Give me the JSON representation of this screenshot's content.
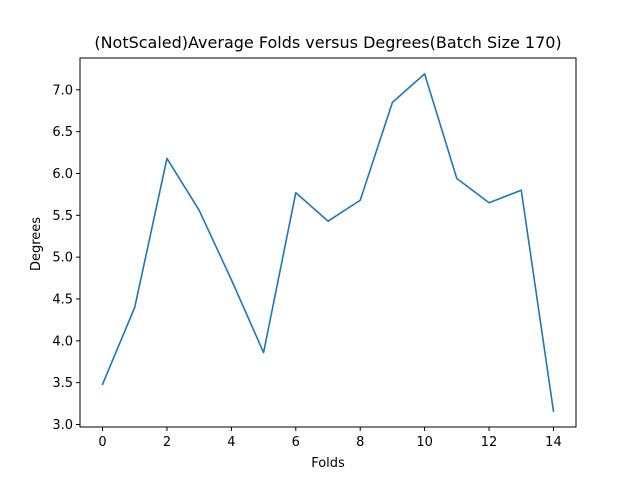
{
  "chart_data": {
    "type": "line",
    "title": "(NotScaled)Average Folds versus Degrees(Batch Size 170)",
    "xlabel": "Folds",
    "ylabel": "Degrees",
    "xlim": [
      -0.7,
      14.7
    ],
    "ylim": [
      2.97,
      7.38
    ],
    "x_ticks": [
      0,
      2,
      4,
      6,
      8,
      10,
      12,
      14
    ],
    "y_ticks": [
      3.0,
      3.5,
      4.0,
      4.5,
      5.0,
      5.5,
      6.0,
      6.5,
      7.0
    ],
    "grid": false,
    "series": [
      {
        "color": "#1f77b4",
        "x": [
          0,
          1,
          2,
          3,
          4,
          5,
          6,
          7,
          8,
          9,
          10,
          11,
          12,
          13,
          14
        ],
        "y": [
          3.48,
          4.4,
          6.18,
          5.56,
          4.73,
          3.86,
          5.77,
          5.43,
          5.68,
          6.85,
          7.19,
          5.94,
          5.65,
          5.8,
          3.16
        ]
      }
    ]
  }
}
